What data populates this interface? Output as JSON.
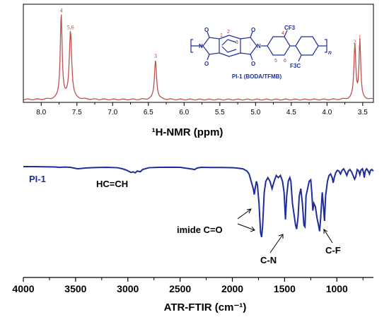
{
  "chart_data": [
    {
      "type": "line",
      "xlabel": "¹H-NMR (ppm)",
      "xlim": [
        8.25,
        3.35
      ],
      "ylim": [
        0,
        1
      ],
      "x_ticks": [
        "8.0",
        "7.5",
        "7.0",
        "6.5",
        "6.0",
        "5.5",
        "5.0",
        "4.5",
        "4.0",
        "3.5"
      ],
      "color": "#c0504d",
      "peaks": [
        {
          "x": 7.72,
          "height": 0.95,
          "width": 0.016,
          "label": "4"
        },
        {
          "x": 7.59,
          "height": 0.76,
          "width": 0.02,
          "label": "5,6"
        },
        {
          "x": 6.4,
          "height": 0.44,
          "width": 0.018,
          "label": "3"
        },
        {
          "x": 3.61,
          "height": 0.6,
          "width": 0.016,
          "label": "2"
        },
        {
          "x": 3.54,
          "height": 0.65,
          "width": 0.014,
          "label": "1"
        }
      ],
      "structure": {
        "polymer_name": "PI-1 (BODA/TFMB)",
        "atoms": [
          "O",
          "O",
          "O",
          "O",
          "N",
          "N",
          "CF3",
          "F3C",
          "n"
        ],
        "position_labels": [
          "1",
          "2",
          "3",
          "4",
          "5",
          "6"
        ]
      }
    },
    {
      "type": "line",
      "xlabel": "ATR-FTIR (cm⁻¹)",
      "xlim": [
        4000,
        650
      ],
      "x_ticks": [
        "4000",
        "3500",
        "3000",
        "2500",
        "2000",
        "1500",
        "1000"
      ],
      "color": "#1f2d9a",
      "series": [
        {
          "name": "PI-1"
        }
      ],
      "points": [
        [
          4000,
          0.0
        ],
        [
          3900,
          0.0
        ],
        [
          3800,
          0.003
        ],
        [
          3700,
          0.005
        ],
        [
          3650,
          0.01
        ],
        [
          3600,
          0.006
        ],
        [
          3550,
          0.01
        ],
        [
          3480,
          0.03
        ],
        [
          3400,
          0.018
        ],
        [
          3300,
          0.012
        ],
        [
          3200,
          0.01
        ],
        [
          3100,
          0.015
        ],
        [
          3050,
          0.03
        ],
        [
          3010,
          0.05
        ],
        [
          2990,
          0.065
        ],
        [
          2970,
          0.08
        ],
        [
          2950,
          0.07
        ],
        [
          2930,
          0.085
        ],
        [
          2910,
          0.06
        ],
        [
          2880,
          0.07
        ],
        [
          2860,
          0.04
        ],
        [
          2800,
          0.015
        ],
        [
          2700,
          0.01
        ],
        [
          2600,
          0.008
        ],
        [
          2500,
          0.01
        ],
        [
          2400,
          0.03
        ],
        [
          2360,
          0.04
        ],
        [
          2340,
          0.02
        ],
        [
          2300,
          0.01
        ],
        [
          2200,
          0.012
        ],
        [
          2100,
          0.012
        ],
        [
          2000,
          0.014
        ],
        [
          1950,
          0.02
        ],
        [
          1900,
          0.03
        ],
        [
          1860,
          0.06
        ],
        [
          1840,
          0.1
        ],
        [
          1820,
          0.2
        ],
        [
          1800,
          0.3
        ],
        [
          1790,
          0.38
        ],
        [
          1782,
          0.3
        ],
        [
          1770,
          0.2
        ],
        [
          1760,
          0.25
        ],
        [
          1745,
          0.5
        ],
        [
          1730,
          0.9
        ],
        [
          1720,
          0.96
        ],
        [
          1710,
          0.8
        ],
        [
          1695,
          0.35
        ],
        [
          1680,
          0.2
        ],
        [
          1660,
          0.15
        ],
        [
          1640,
          0.2
        ],
        [
          1620,
          0.3
        ],
        [
          1600,
          0.2
        ],
        [
          1580,
          0.12
        ],
        [
          1560,
          0.15
        ],
        [
          1540,
          0.12
        ],
        [
          1520,
          0.2
        ],
        [
          1505,
          0.35
        ],
        [
          1492,
          0.72
        ],
        [
          1480,
          0.4
        ],
        [
          1465,
          0.2
        ],
        [
          1450,
          0.15
        ],
        [
          1440,
          0.2
        ],
        [
          1425,
          0.5
        ],
        [
          1410,
          0.65
        ],
        [
          1395,
          0.8
        ],
        [
          1385,
          0.85
        ],
        [
          1372,
          0.7
        ],
        [
          1360,
          0.4
        ],
        [
          1345,
          0.3
        ],
        [
          1330,
          0.5
        ],
        [
          1315,
          0.8
        ],
        [
          1305,
          0.82
        ],
        [
          1295,
          0.4
        ],
        [
          1280,
          0.3
        ],
        [
          1265,
          0.2
        ],
        [
          1250,
          0.18
        ],
        [
          1240,
          0.35
        ],
        [
          1230,
          0.6
        ],
        [
          1220,
          0.5
        ],
        [
          1205,
          0.55
        ],
        [
          1190,
          0.7
        ],
        [
          1178,
          0.78
        ],
        [
          1165,
          0.88
        ],
        [
          1155,
          0.7
        ],
        [
          1140,
          0.35
        ],
        [
          1128,
          0.55
        ],
        [
          1118,
          0.74
        ],
        [
          1108,
          0.4
        ],
        [
          1090,
          0.2
        ],
        [
          1075,
          0.12
        ],
        [
          1060,
          0.1
        ],
        [
          1045,
          0.15
        ],
        [
          1035,
          0.22
        ],
        [
          1025,
          0.15
        ],
        [
          1010,
          0.08
        ],
        [
          995,
          0.05
        ],
        [
          980,
          0.06
        ],
        [
          965,
          0.1
        ],
        [
          950,
          0.05
        ],
        [
          935,
          0.03
        ],
        [
          920,
          0.07
        ],
        [
          905,
          0.12
        ],
        [
          890,
          0.06
        ],
        [
          875,
          0.04
        ],
        [
          860,
          0.07
        ],
        [
          845,
          0.12
        ],
        [
          830,
          0.17
        ],
        [
          820,
          0.14
        ],
        [
          805,
          0.04
        ],
        [
          790,
          0.06
        ],
        [
          780,
          0.11
        ],
        [
          770,
          0.05
        ],
        [
          755,
          0.03
        ],
        [
          745,
          0.08
        ],
        [
          738,
          0.15
        ],
        [
          728,
          0.06
        ],
        [
          715,
          0.03
        ],
        [
          700,
          0.06
        ],
        [
          688,
          0.1
        ],
        [
          678,
          0.05
        ],
        [
          665,
          0.04
        ],
        [
          650,
          0.06
        ]
      ],
      "annotations": [
        "HC=CH",
        "imide C=O",
        "C-N",
        "C-F"
      ]
    }
  ]
}
